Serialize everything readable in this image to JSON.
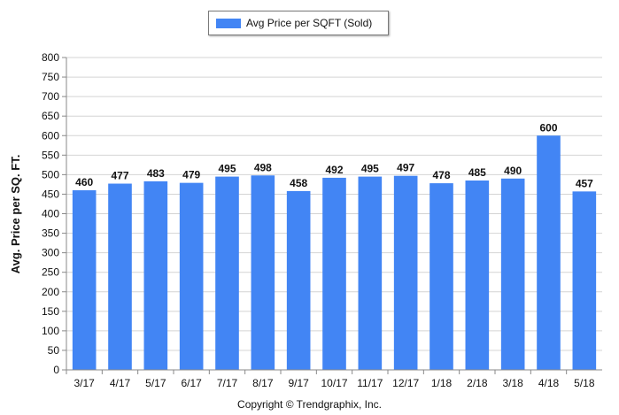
{
  "chart_data": {
    "type": "bar",
    "ylabel": "Avg. Price per SQ. FT.",
    "categories": [
      "3/17",
      "4/17",
      "5/17",
      "6/17",
      "7/17",
      "8/17",
      "9/17",
      "10/17",
      "11/17",
      "12/17",
      "1/18",
      "2/18",
      "3/18",
      "4/18",
      "5/18"
    ],
    "series": [
      {
        "name": "Avg Price per SQFT (Sold)",
        "values": [
          460,
          477,
          483,
          479,
          495,
          498,
          458,
          492,
          495,
          497,
          478,
          485,
          490,
          600,
          457
        ],
        "color": "#4285f4"
      }
    ],
    "ylim": [
      0,
      800
    ],
    "yticks": [
      0,
      50,
      100,
      150,
      200,
      250,
      300,
      350,
      400,
      450,
      500,
      550,
      600,
      650,
      700,
      750,
      800
    ],
    "grid": true,
    "data_labels": true,
    "legend_position": "top-center"
  },
  "footer": {
    "copyright": "Copyright © Trendgraphix, Inc."
  }
}
